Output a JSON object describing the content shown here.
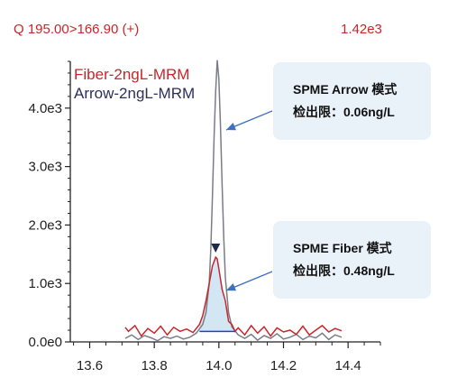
{
  "header": {
    "transition": "Q 195.00>166.90 (+)",
    "max_intensity": "1.42e3"
  },
  "legend": {
    "fiber": "Fiber-2ngL-MRM",
    "arrow": "Arrow-2ngL-MRM"
  },
  "callouts": {
    "arrow_mode": "SPME Arrow 模式",
    "arrow_lod": "检出限：0.06ng/L",
    "fiber_mode": "SPME Fiber 模式",
    "fiber_lod": "检出限：0.48ng/L"
  },
  "colors": {
    "fiber": "#c8262b",
    "arrow": "#7a7d86",
    "peak_fill": "#d3e6f3",
    "baseline": "#1f3fd6",
    "marker": "#1e2a4a",
    "callout_arrow": "#3f6fbf"
  },
  "chart_data": {
    "type": "line",
    "xlim": [
      13.54,
      14.5
    ],
    "ylim": [
      0,
      4800
    ],
    "x_ticks": [
      13.6,
      13.8,
      14.0,
      14.2,
      14.4
    ],
    "x_tick_labels": [
      "13.6",
      "13.8",
      "14.0",
      "14.2",
      "14.4"
    ],
    "y_ticks": [
      0,
      1000,
      2000,
      3000,
      4000
    ],
    "y_tick_labels": [
      "0.0e0",
      "1.0e3",
      "2.0e3",
      "3.0e3",
      "4.0e3"
    ],
    "series": [
      {
        "name": "Arrow-2ngL-MRM",
        "x": [
          13.71,
          13.73,
          13.75,
          13.77,
          13.79,
          13.81,
          13.83,
          13.85,
          13.87,
          13.89,
          13.91,
          13.93,
          13.95,
          13.96,
          13.97,
          13.975,
          13.98,
          13.985,
          13.99,
          13.995,
          14.0,
          14.005,
          14.01,
          14.015,
          14.02,
          14.03,
          14.04,
          14.06,
          14.08,
          14.1,
          14.12,
          14.14,
          14.16,
          14.18,
          14.2,
          14.22,
          14.24,
          14.26,
          14.28,
          14.3,
          14.32,
          14.34,
          14.36,
          14.38
        ],
        "values": [
          60,
          120,
          40,
          110,
          70,
          20,
          90,
          60,
          100,
          50,
          80,
          150,
          300,
          500,
          1000,
          1600,
          2500,
          3500,
          4300,
          4820,
          4500,
          3700,
          2700,
          1800,
          1100,
          500,
          260,
          120,
          60,
          130,
          30,
          110,
          60,
          140,
          50,
          80,
          130,
          40,
          100,
          70,
          150,
          40,
          120,
          80
        ]
      },
      {
        "name": "Fiber-2ngL-MRM",
        "x": [
          13.71,
          13.72,
          13.74,
          13.76,
          13.78,
          13.8,
          13.82,
          13.84,
          13.86,
          13.88,
          13.9,
          13.92,
          13.94,
          13.95,
          13.96,
          13.97,
          13.98,
          13.99,
          13.995,
          14.0,
          14.01,
          14.02,
          14.03,
          14.04,
          14.05,
          14.06,
          14.08,
          14.1,
          14.12,
          14.14,
          14.16,
          14.18,
          14.2,
          14.22,
          14.24,
          14.26,
          14.28,
          14.3,
          14.32,
          14.34,
          14.36,
          14.38
        ],
        "values": [
          250,
          180,
          280,
          100,
          230,
          150,
          270,
          120,
          250,
          180,
          220,
          160,
          300,
          450,
          700,
          1000,
          1300,
          1450,
          1420,
          1250,
          900,
          700,
          350,
          300,
          180,
          240,
          120,
          280,
          150,
          260,
          100,
          240,
          170,
          200,
          130,
          270,
          120,
          200,
          280,
          170,
          230,
          190
        ]
      }
    ],
    "peak_marker_x": 13.99
  }
}
